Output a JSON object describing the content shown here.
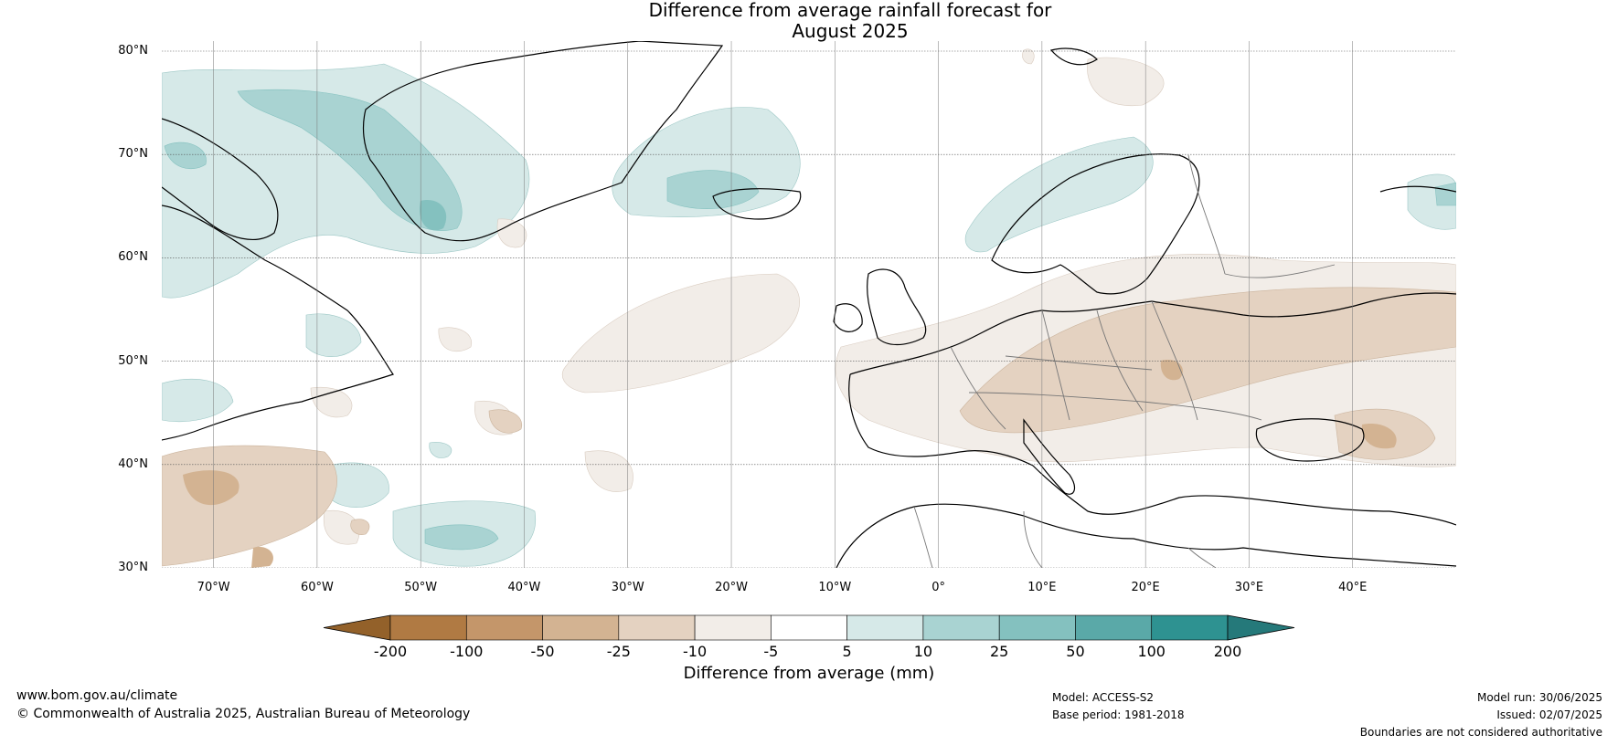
{
  "title": {
    "line1": "Difference from average rainfall forecast for",
    "line2": "August 2025"
  },
  "map": {
    "latitude_labels": [
      "80°N",
      "70°N",
      "60°N",
      "50°N",
      "40°N",
      "30°N"
    ],
    "longitude_labels": [
      "70°W",
      "60°W",
      "50°W",
      "40°W",
      "30°W",
      "20°W",
      "10°W",
      "0°",
      "10°E",
      "20°E",
      "30°E",
      "40°E"
    ],
    "extent": {
      "lon": [
        -75,
        50
      ],
      "lat": [
        30,
        81
      ]
    }
  },
  "colorbar": {
    "ticks": [
      "-200",
      "-100",
      "-50",
      "-25",
      "-10",
      "-5",
      "5",
      "10",
      "25",
      "50",
      "100",
      "200"
    ],
    "colors": [
      "#93612a",
      "#b07a43",
      "#c4966a",
      "#d3b392",
      "#e4d2c1",
      "#f2ede8",
      "#ffffff",
      "#d6e9e8",
      "#a9d3d2",
      "#84c1bf",
      "#5aa9a8",
      "#2e9291",
      "#25797a"
    ],
    "label": "Difference from average (mm)"
  },
  "footer": {
    "website": "www.bom.gov.au/climate",
    "copyright": "© Commonwealth of Australia 2025, Australian Bureau of Meteorology",
    "model": "Model: ACCESS-S2",
    "base_period": "Base period: 1981-2018",
    "model_run": "Model run: 30/06/2025",
    "issued": "Issued: 02/07/2025",
    "disclaimer": "Boundaries are not considered authoritative"
  }
}
